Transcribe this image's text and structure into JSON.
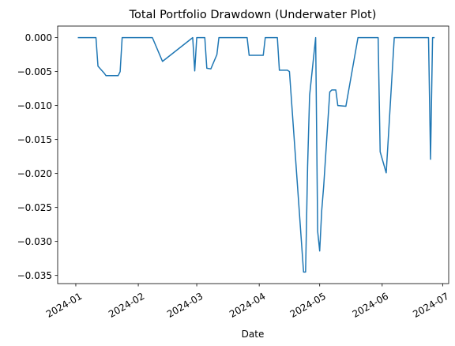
{
  "chart_data": {
    "type": "line",
    "title": "Total Portfolio Drawdown (Underwater Plot)",
    "xlabel": "Date",
    "ylabel": "",
    "grid": false,
    "legend": "none",
    "colors": {
      "line": "#1f77b4",
      "axes": "#000000",
      "background": "#ffffff"
    },
    "xlim": [
      "2023-12-23",
      "2024-07-04"
    ],
    "ylim": [
      -0.0362,
      0.0017
    ],
    "x_ticks": [
      "2024-01-01",
      "2024-02-01",
      "2024-03-01",
      "2024-04-01",
      "2024-05-01",
      "2024-06-01",
      "2024-07-01"
    ],
    "x_tick_labels": [
      "2024-01",
      "2024-02",
      "2024-03",
      "2024-04",
      "2024-05",
      "2024-06",
      "2024-07"
    ],
    "y_ticks": [
      0.0,
      -0.005,
      -0.01,
      -0.015,
      -0.02,
      -0.025,
      -0.03,
      -0.035
    ],
    "y_tick_labels": [
      "0.000",
      "−0.005",
      "−0.010",
      "−0.015",
      "−0.020",
      "−0.025",
      "−0.030",
      "−0.035"
    ],
    "series": [
      {
        "x": [
          "2024-01-02",
          "2024-01-11",
          "2024-01-12",
          "2024-01-15",
          "2024-01-16",
          "2024-01-22",
          "2024-01-23",
          "2024-01-24",
          "2024-02-08",
          "2024-02-13",
          "2024-02-28",
          "2024-02-29",
          "2024-03-01",
          "2024-03-05",
          "2024-03-06",
          "2024-03-08",
          "2024-03-11",
          "2024-03-12",
          "2024-03-26",
          "2024-03-27",
          "2024-04-03",
          "2024-04-04",
          "2024-04-10",
          "2024-04-11",
          "2024-04-15",
          "2024-04-16",
          "2024-04-23",
          "2024-04-24",
          "2024-04-25",
          "2024-04-26",
          "2024-04-29",
          "2024-04-30",
          "2024-05-01",
          "2024-05-02",
          "2024-05-03",
          "2024-05-06",
          "2024-05-07",
          "2024-05-09",
          "2024-05-10",
          "2024-05-14",
          "2024-05-20",
          "2024-05-21",
          "2024-05-30",
          "2024-05-31",
          "2024-06-03",
          "2024-06-04",
          "2024-06-07",
          "2024-06-10",
          "2024-06-21",
          "2024-06-24",
          "2024-06-25",
          "2024-06-26",
          "2024-06-27"
        ],
        "values": [
          0.0,
          0.0,
          -0.0042,
          -0.0052,
          -0.0056,
          -0.0056,
          -0.005,
          0.0,
          0.0,
          -0.0035,
          0.0,
          -0.0049,
          0.0,
          0.0,
          -0.0045,
          -0.0046,
          -0.0025,
          0.0,
          0.0,
          -0.0026,
          -0.0026,
          0.0,
          0.0,
          -0.0048,
          -0.0048,
          -0.005,
          -0.0345,
          -0.0345,
          -0.019,
          -0.0085,
          0.0,
          -0.0285,
          -0.0314,
          -0.0255,
          -0.0218,
          -0.008,
          -0.0077,
          -0.0077,
          -0.01,
          -0.0101,
          0.0,
          0.0,
          0.0,
          -0.0168,
          -0.0199,
          -0.015,
          0.0,
          0.0,
          0.0,
          0.0,
          -0.0179,
          0.0,
          0.0
        ]
      }
    ]
  }
}
